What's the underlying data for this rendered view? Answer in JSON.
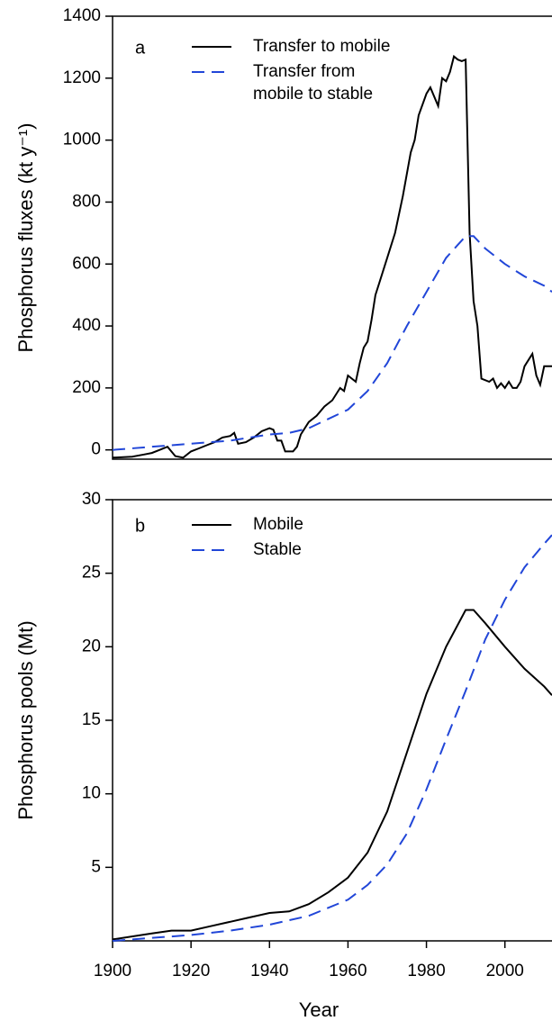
{
  "chart_data": [
    {
      "type": "line",
      "panel_label": "a",
      "ylabel": "Phosphorus fluxes (kt y⁻¹)",
      "xlim": [
        1900,
        2012
      ],
      "ylim": [
        -30,
        1400
      ],
      "yticks": [
        0,
        200,
        400,
        600,
        800,
        1000,
        1200,
        1400
      ],
      "series": [
        {
          "name": "Transfer to mobile",
          "color": "#000000",
          "linestyle": "solid",
          "x": [
            1900,
            1905,
            1908,
            1910,
            1912,
            1914,
            1916,
            1918,
            1920,
            1922,
            1924,
            1926,
            1928,
            1930,
            1931,
            1932,
            1934,
            1936,
            1938,
            1940,
            1941,
            1942,
            1943,
            1944,
            1946,
            1947,
            1948,
            1950,
            1952,
            1954,
            1956,
            1958,
            1959,
            1960,
            1962,
            1963,
            1964,
            1965,
            1966,
            1967,
            1968,
            1970,
            1972,
            1974,
            1976,
            1977,
            1978,
            1980,
            1981,
            1983,
            1984,
            1985,
            1986,
            1987,
            1988,
            1989,
            1990,
            1991,
            1992,
            1993,
            1994,
            1996,
            1997,
            1998,
            1999,
            2000,
            2001,
            2002,
            2003,
            2004,
            2005,
            2007,
            2008,
            2009,
            2010,
            2012
          ],
          "values": [
            -25,
            -22,
            -15,
            -10,
            0,
            10,
            -20,
            -25,
            -5,
            5,
            15,
            25,
            40,
            45,
            55,
            20,
            25,
            40,
            60,
            70,
            65,
            30,
            30,
            -5,
            -5,
            10,
            50,
            90,
            110,
            140,
            160,
            200,
            190,
            240,
            220,
            280,
            330,
            350,
            420,
            500,
            540,
            620,
            700,
            820,
            960,
            1000,
            1080,
            1150,
            1170,
            1110,
            1200,
            1190,
            1220,
            1270,
            1260,
            1255,
            1260,
            700,
            480,
            400,
            230,
            220,
            230,
            200,
            215,
            200,
            220,
            200,
            200,
            220,
            270,
            310,
            240,
            210,
            270,
            270
          ]
        },
        {
          "name": "Transfer from mobile to stable",
          "color": "#2146d8",
          "linestyle": "dashed",
          "x": [
            1900,
            1910,
            1915,
            1920,
            1930,
            1940,
            1945,
            1950,
            1955,
            1960,
            1965,
            1970,
            1975,
            1980,
            1985,
            1990,
            1992,
            1995,
            2000,
            2005,
            2010,
            2012
          ],
          "values": [
            0,
            10,
            15,
            20,
            30,
            50,
            55,
            70,
            100,
            130,
            190,
            280,
            400,
            510,
            620,
            690,
            690,
            650,
            600,
            560,
            530,
            510
          ]
        }
      ]
    },
    {
      "type": "line",
      "panel_label": "b",
      "ylabel": "Phosphorus pools (Mt)",
      "xlabel": "Year",
      "xlim": [
        1900,
        2012
      ],
      "ylim": [
        0,
        30
      ],
      "yticks": [
        5,
        10,
        15,
        20,
        25,
        30
      ],
      "xticks": [
        1900,
        1920,
        1940,
        1960,
        1980,
        2000
      ],
      "series": [
        {
          "name": "Mobile",
          "color": "#000000",
          "linestyle": "solid",
          "x": [
            1900,
            1910,
            1915,
            1920,
            1925,
            1930,
            1935,
            1940,
            1945,
            1950,
            1955,
            1960,
            1965,
            1970,
            1975,
            1980,
            1985,
            1990,
            1992,
            1995,
            2000,
            2005,
            2010,
            2012
          ],
          "values": [
            0.1,
            0.5,
            0.7,
            0.7,
            1.0,
            1.3,
            1.6,
            1.9,
            2.0,
            2.5,
            3.3,
            4.3,
            6.0,
            8.8,
            12.8,
            16.8,
            20.0,
            22.5,
            22.5,
            21.6,
            20.0,
            18.5,
            17.3,
            16.7
          ]
        },
        {
          "name": "Stable",
          "color": "#2146d8",
          "linestyle": "dashed",
          "x": [
            1900,
            1910,
            1920,
            1930,
            1940,
            1950,
            1960,
            1965,
            1970,
            1975,
            1980,
            1985,
            1990,
            1995,
            2000,
            2005,
            2010,
            2012
          ],
          "values": [
            0,
            0.2,
            0.4,
            0.7,
            1.1,
            1.7,
            2.8,
            3.8,
            5.2,
            7.3,
            10.3,
            13.7,
            17.0,
            20.5,
            23.2,
            25.4,
            27.0,
            27.6
          ]
        }
      ]
    }
  ]
}
